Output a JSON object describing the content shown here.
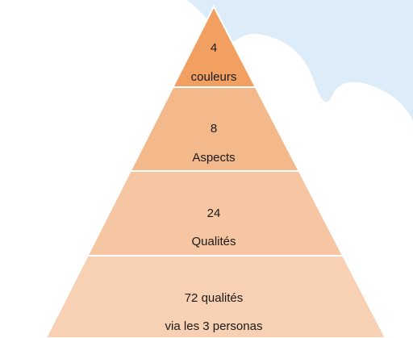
{
  "levels": [
    {
      "lines": [
        "4",
        "couleurs"
      ],
      "color": "#f1a062"
    },
    {
      "lines": [
        "8",
        "Aspects"
      ],
      "color": "#f4b98b"
    },
    {
      "lines": [
        "24",
        "Qualités"
      ],
      "color": "#f6c5a2"
    },
    {
      "lines": [
        "72 qualités",
        "via les 3 personas"
      ],
      "color": "#f8d0b3"
    }
  ]
}
